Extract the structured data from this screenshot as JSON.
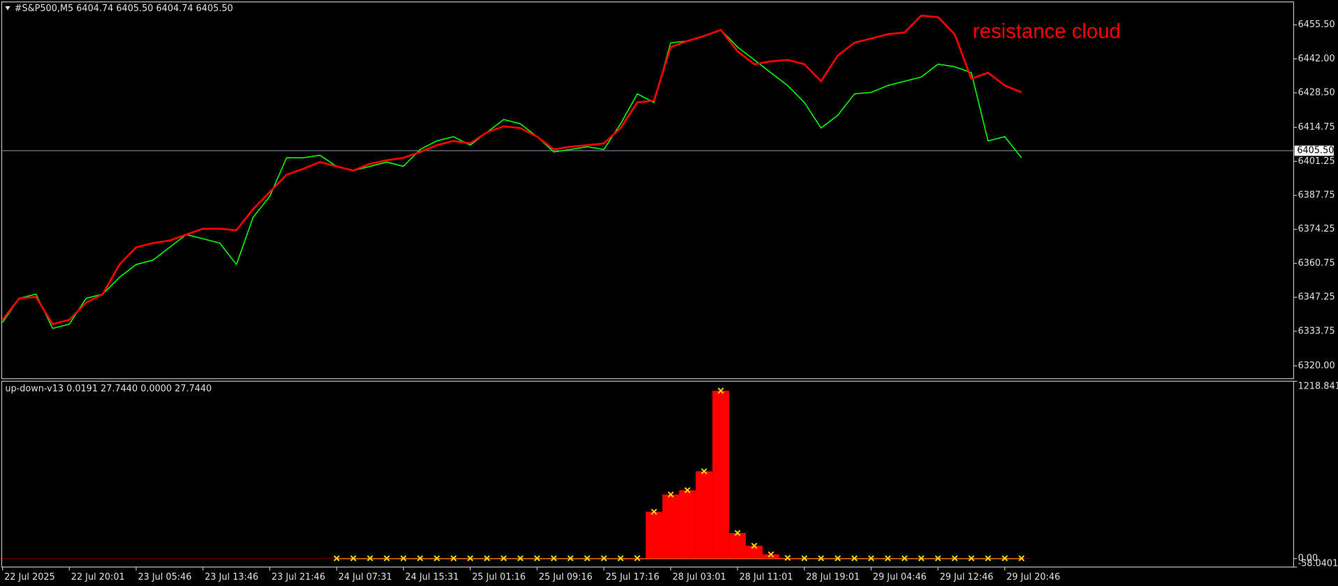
{
  "chart_data": [
    {
      "type": "line",
      "header": "#S&P500,M5  6404.74 6405.50 6404.74 6405.50",
      "annotation": "resistance cloud",
      "annotation_color": "#ff0000",
      "categories": [
        "22 Jul 2025",
        null,
        null,
        null,
        "22 Jul 20:01",
        null,
        null,
        null,
        "23 Jul 05:46",
        null,
        null,
        null,
        "23 Jul 13:46",
        null,
        null,
        null,
        "23 Jul 21:46",
        null,
        null,
        null,
        "24 Jul 07:31",
        null,
        null,
        null,
        "24 Jul 15:31",
        null,
        null,
        null,
        "25 Jul 01:16",
        null,
        null,
        null,
        "25 Jul 09:16",
        null,
        null,
        null,
        "25 Jul 17:16",
        null,
        null,
        null,
        "28 Jul 03:01",
        null,
        null,
        null,
        "28 Jul 11:01",
        null,
        null,
        null,
        "28 Jul 19:01",
        null,
        null,
        null,
        "29 Jul 04:46",
        null,
        null,
        null,
        "29 Jul 12:46",
        null,
        null,
        null,
        "29 Jul 20:46",
        null
      ],
      "series": [
        {
          "color": "#00ff00",
          "values": [
            6337.3,
            6346.8,
            6348.5,
            6334.9,
            6336.6,
            6346.8,
            6348.5,
            6355.2,
            6360.3,
            6362.0,
            6367.1,
            6372.2,
            6370.5,
            6368.8,
            6360.3,
            6379.0,
            6387.4,
            6402.7,
            6402.7,
            6403.7,
            6399.3,
            6397.6,
            6399.3,
            6401.0,
            6399.3,
            6406.0,
            6409.4,
            6411.1,
            6407.7,
            6412.8,
            6417.9,
            6416.2,
            6411.1,
            6405.0,
            6406.0,
            6407.1,
            6406.0,
            6416.2,
            6428.1,
            6424.7,
            6448.4,
            6449.1,
            6451.1,
            6453.5,
            6446.7,
            6441.6,
            6436.5,
            6431.4,
            6424.7,
            6414.5,
            6419.6,
            6428.1,
            6428.7,
            6431.4,
            6433.1,
            6434.8,
            6439.9,
            6438.9,
            6436.5,
            6409.4,
            6411.1,
            6402.7
          ]
        },
        {
          "color": "#ff0000",
          "values": [
            6338.3,
            6346.8,
            6347.4,
            6336.6,
            6338.3,
            6345.1,
            6348.5,
            6360.3,
            6367.1,
            6368.8,
            6369.8,
            6372.2,
            6374.5,
            6374.5,
            6373.9,
            6382.3,
            6389.1,
            6395.9,
            6398.3,
            6401.0,
            6399.3,
            6397.6,
            6400.3,
            6401.7,
            6402.7,
            6405.0,
            6407.7,
            6409.4,
            6408.4,
            6412.8,
            6415.2,
            6414.5,
            6411.1,
            6406.0,
            6407.1,
            6407.7,
            6408.4,
            6414.5,
            6424.7,
            6425.4,
            6446.7,
            6449.1,
            6451.1,
            6453.5,
            6445.0,
            6439.9,
            6441.0,
            6441.6,
            6439.9,
            6433.1,
            6443.3,
            6448.4,
            6450.1,
            6451.8,
            6452.5,
            6459.2,
            6458.6,
            6451.8,
            6434.1,
            6436.5,
            6431.4,
            6428.7
          ]
        }
      ],
      "bid": {
        "value": 6405.5,
        "label": "6405.50"
      },
      "ylim": [
        6314.9,
        6464.65
      ],
      "yticks": [
        {
          "value": 6455.5,
          "label": "6455.50"
        },
        {
          "value": 6442,
          "label": "6442.00"
        },
        {
          "value": 6428.5,
          "label": "6428.50"
        },
        {
          "value": 6414.75,
          "label": "6414.75"
        },
        {
          "value": 6401.25,
          "label": "6401.25"
        },
        {
          "value": 6387.75,
          "label": "6387.75"
        },
        {
          "value": 6374.25,
          "label": "6374.25"
        },
        {
          "value": 6360.75,
          "label": "6360.75"
        },
        {
          "value": 6347.25,
          "label": "6347.25"
        },
        {
          "value": 6333.75,
          "label": "6333.75"
        },
        {
          "value": 6320,
          "label": "6320.00"
        }
      ]
    },
    {
      "type": "bar",
      "header": "up-down-v13 0.0191 27.7440 0.0000 27.7440",
      "color": "#ff0000",
      "marker_color": "#ffd700",
      "values": [
        2,
        2,
        2,
        2,
        2,
        2,
        2,
        2,
        2,
        2,
        2,
        2,
        2,
        2,
        2,
        2,
        2,
        2,
        2,
        2,
        2,
        2,
        2,
        2,
        2,
        2,
        2,
        2,
        2,
        2,
        2,
        2,
        2,
        2,
        2,
        2,
        2,
        2,
        3,
        322,
        440,
        470,
        600,
        1154,
        176,
        88,
        29,
        5,
        2,
        2,
        2,
        2,
        2,
        2,
        2,
        2,
        2,
        2,
        2,
        2,
        2,
        2
      ],
      "ylim": [
        -58.0401,
        1218.8412
      ],
      "yticks": [
        1218.8412,
        {
          "value": 0,
          "label": "0.00"
        },
        -58.0401
      ]
    }
  ]
}
